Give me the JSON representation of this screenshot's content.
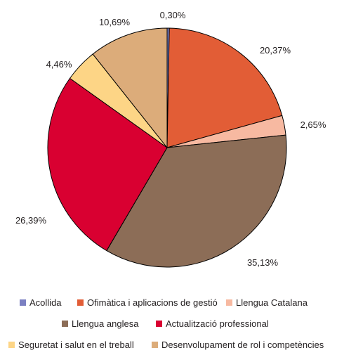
{
  "chart_data": {
    "type": "pie",
    "slices": [
      {
        "label": "Acollida",
        "value": 0.3,
        "display": "0,30%",
        "color": "#7b80c2"
      },
      {
        "label": "Ofimàtica i aplicacions de gestió",
        "value": 20.37,
        "display": "20,37%",
        "color": "#e25d36"
      },
      {
        "label": "Llengua Catalana",
        "value": 2.65,
        "display": "2,65%",
        "color": "#f7b9a1"
      },
      {
        "label": "Llengua anglesa",
        "value": 35.13,
        "display": "35,13%",
        "color": "#8c6d57"
      },
      {
        "label": "Actualització professional",
        "value": 26.39,
        "display": "26,39%",
        "color": "#d90031"
      },
      {
        "label": "Seguretat i salut en el treball",
        "value": 4.46,
        "display": "4,46%",
        "color": "#fdd586"
      },
      {
        "label": "Desenvolupament de rol i competències",
        "value": 10.69,
        "display": "10,69%",
        "color": "#dcac7a"
      }
    ],
    "start_angle_deg": 0,
    "direction": "clockwise",
    "legend_position": "bottom"
  }
}
